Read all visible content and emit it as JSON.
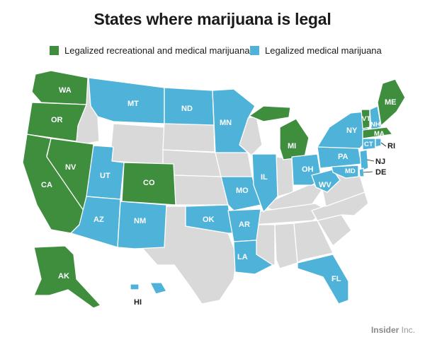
{
  "title": "States where marijuana is legal",
  "colors": {
    "recreational": "#3e8e3e",
    "medical": "#4fb3d9",
    "none": "#d9d9d9"
  },
  "legend": [
    {
      "label": "Legalized recreational and medical marijuana",
      "status": "recreational"
    },
    {
      "label": "Legalized medical marijuana",
      "status": "medical"
    }
  ],
  "states": [
    {
      "abbr": "WA",
      "status": "recreational"
    },
    {
      "abbr": "OR",
      "status": "recreational"
    },
    {
      "abbr": "CA",
      "status": "recreational"
    },
    {
      "abbr": "NV",
      "status": "recreational"
    },
    {
      "abbr": "CO",
      "status": "recreational"
    },
    {
      "abbr": "AK",
      "status": "recreational"
    },
    {
      "abbr": "MI",
      "status": "recreational"
    },
    {
      "abbr": "VT",
      "status": "recreational"
    },
    {
      "abbr": "ME",
      "status": "recreational"
    },
    {
      "abbr": "MA",
      "status": "recreational"
    },
    {
      "abbr": "MT",
      "status": "medical"
    },
    {
      "abbr": "ND",
      "status": "medical"
    },
    {
      "abbr": "MN",
      "status": "medical"
    },
    {
      "abbr": "UT",
      "status": "medical"
    },
    {
      "abbr": "AZ",
      "status": "medical"
    },
    {
      "abbr": "NM",
      "status": "medical"
    },
    {
      "abbr": "OK",
      "status": "medical"
    },
    {
      "abbr": "AR",
      "status": "medical"
    },
    {
      "abbr": "LA",
      "status": "medical"
    },
    {
      "abbr": "MO",
      "status": "medical"
    },
    {
      "abbr": "IL",
      "status": "medical"
    },
    {
      "abbr": "OH",
      "status": "medical"
    },
    {
      "abbr": "WV",
      "status": "medical"
    },
    {
      "abbr": "PA",
      "status": "medical"
    },
    {
      "abbr": "NY",
      "status": "medical"
    },
    {
      "abbr": "NH",
      "status": "medical"
    },
    {
      "abbr": "CT",
      "status": "medical"
    },
    {
      "abbr": "RI",
      "status": "medical"
    },
    {
      "abbr": "NJ",
      "status": "medical"
    },
    {
      "abbr": "DE",
      "status": "medical"
    },
    {
      "abbr": "MD",
      "status": "medical"
    },
    {
      "abbr": "FL",
      "status": "medical"
    },
    {
      "abbr": "HI",
      "status": "medical"
    }
  ],
  "credit": {
    "brand": "Insider",
    "suffix": "Inc."
  }
}
